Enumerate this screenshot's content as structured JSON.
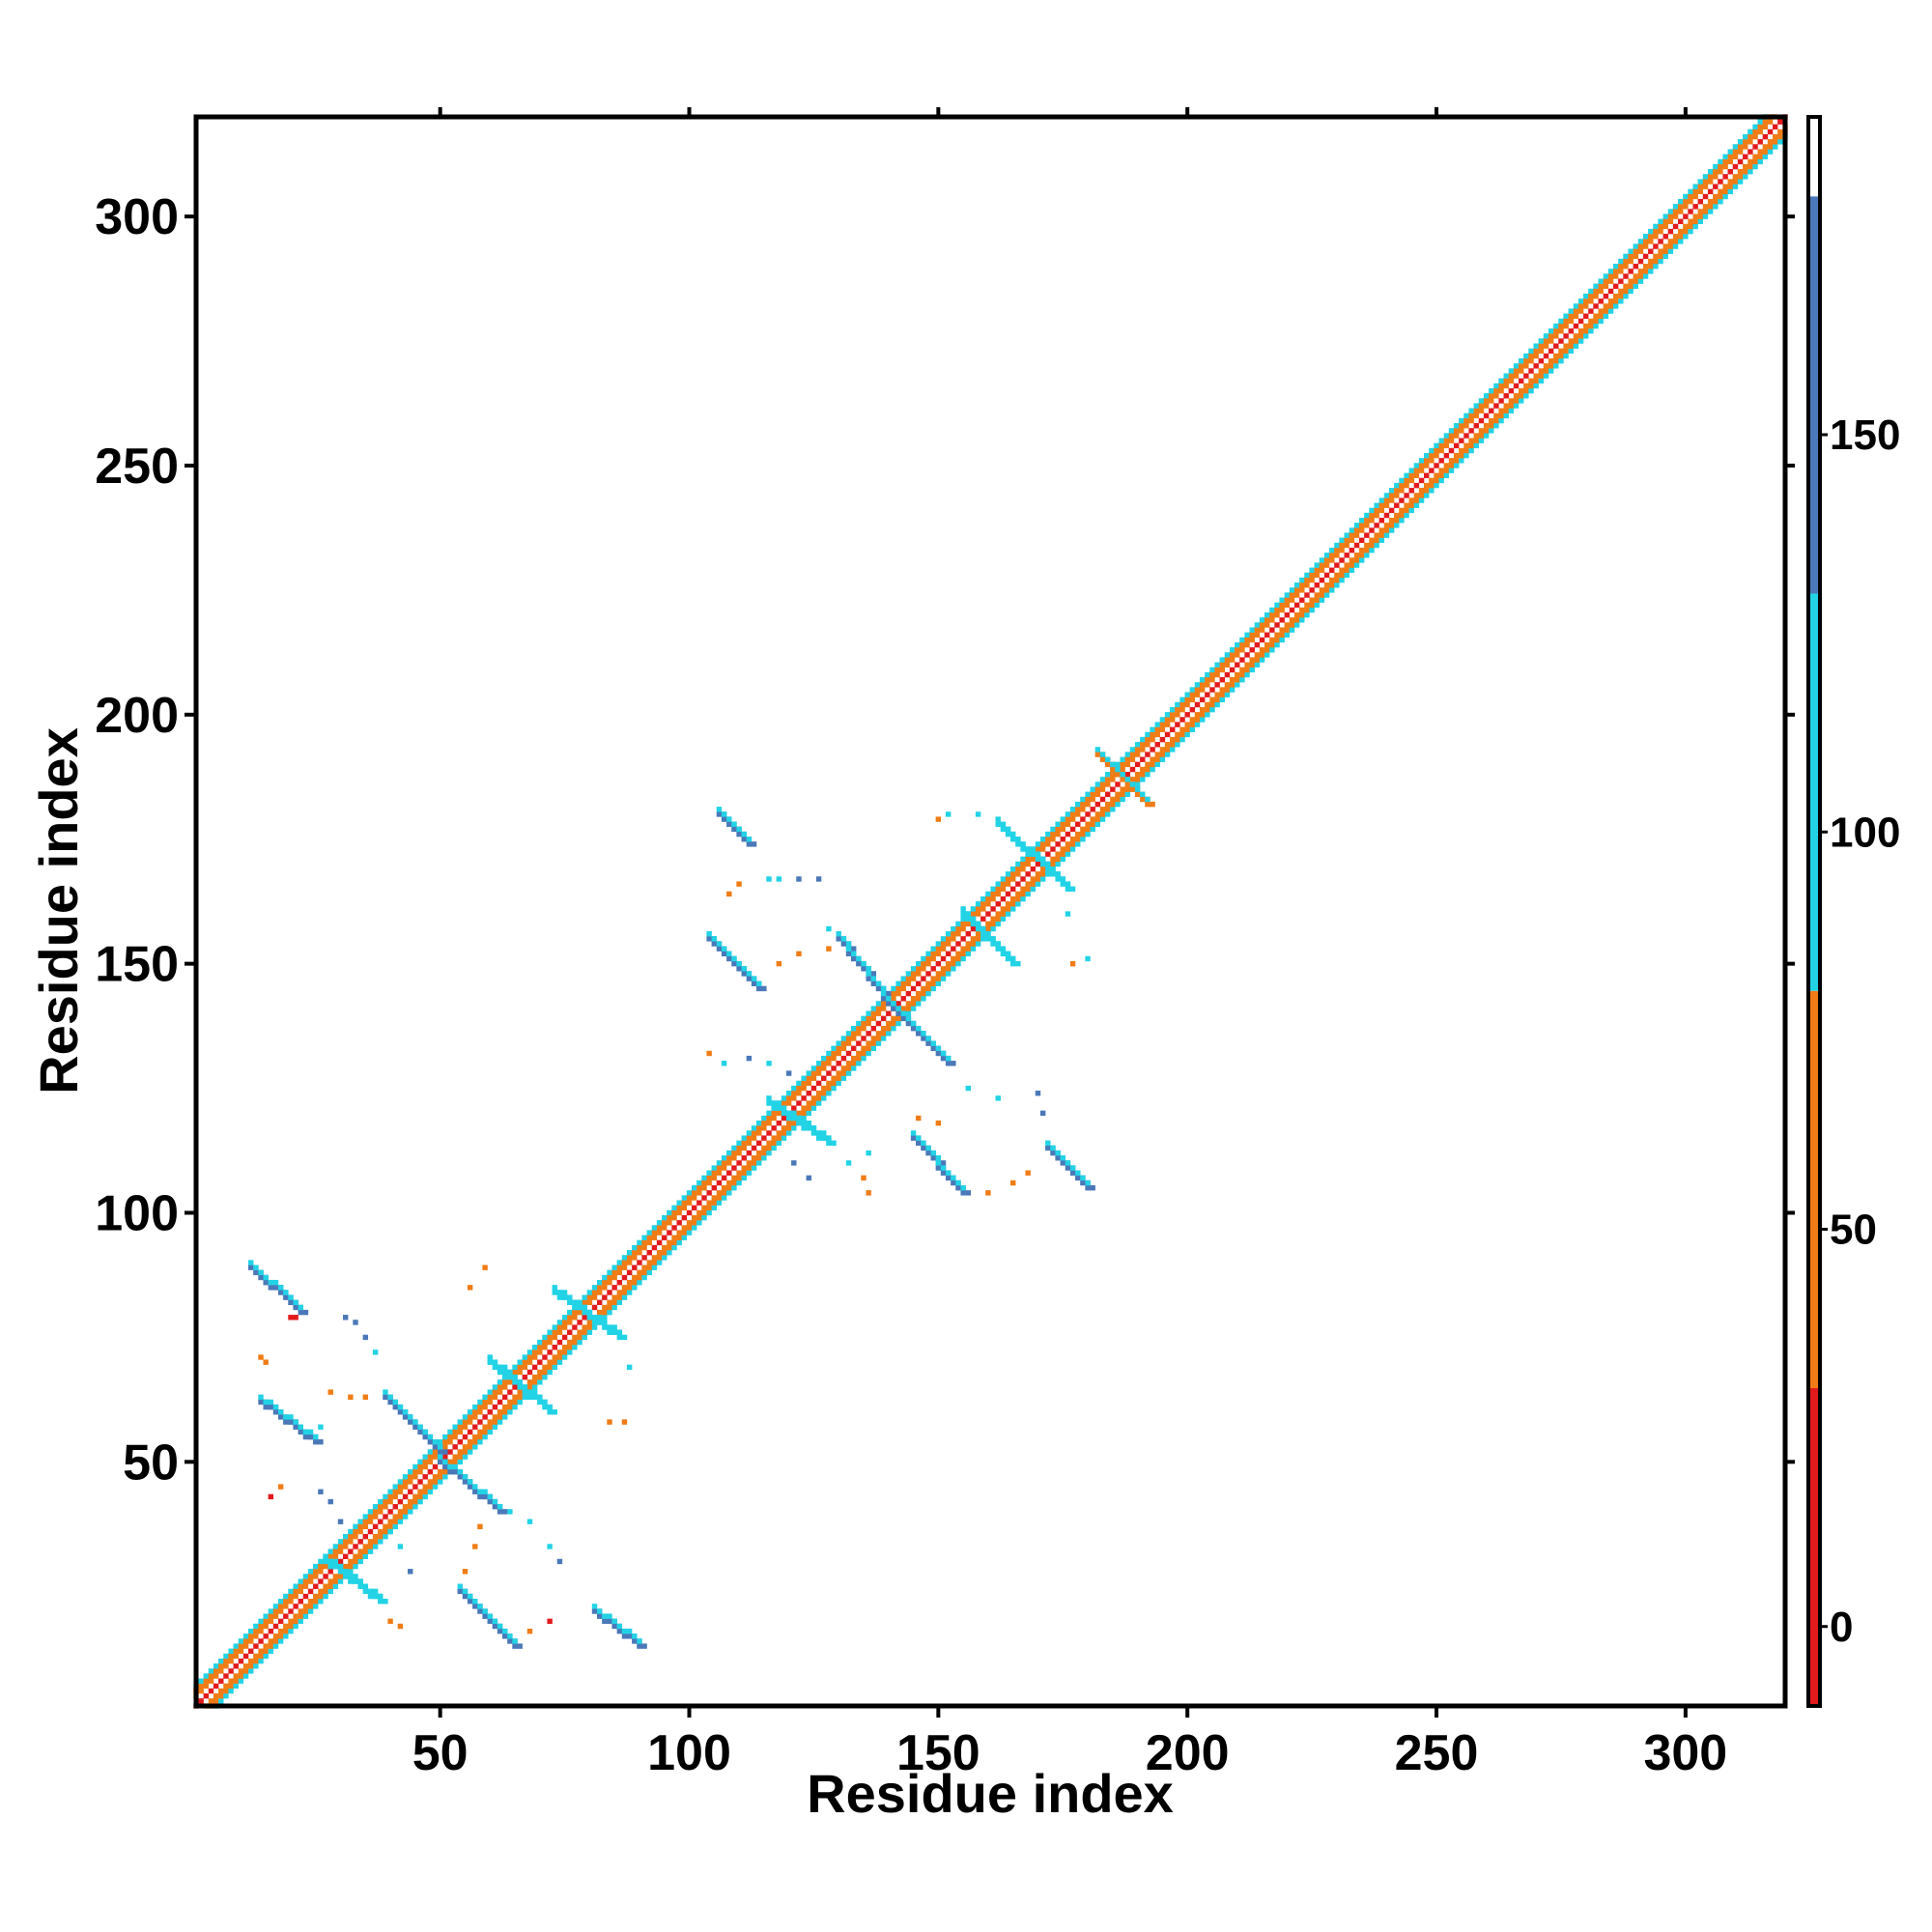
{
  "chart_data": {
    "type": "heatmap",
    "xlabel": "Residue index",
    "ylabel": "Residue index",
    "xlim": [
      1,
      320
    ],
    "ylim": [
      1,
      320
    ],
    "x_ticks": [
      50,
      100,
      150,
      200,
      250,
      300
    ],
    "y_ticks": [
      50,
      100,
      150,
      200,
      250,
      300
    ],
    "colorbar": {
      "range": [
        -10,
        190
      ],
      "ticks": [
        0,
        50,
        100,
        150
      ],
      "bands": [
        {
          "from": -10,
          "to": 30,
          "color": "#e31a1c"
        },
        {
          "from": 30,
          "to": 80,
          "color": "#f07c16"
        },
        {
          "from": 80,
          "to": 130,
          "color": "#22d3e6"
        },
        {
          "from": 130,
          "to": 180,
          "color": "#4a78b8"
        },
        {
          "from": 180,
          "to": 190,
          "color": "#ffffff"
        }
      ]
    },
    "colors": {
      "red": "#e31a1c",
      "orange": "#f07c16",
      "cyan": "#22d3e6",
      "blue": "#4a78b8"
    },
    "diagonal": {
      "from": 1,
      "to": 320,
      "offsets": [
        0,
        2,
        3,
        4
      ]
    },
    "diagonal_colors": {
      "0": "#e31a1c",
      "2": "#f07c16",
      "3": "#f07c16",
      "4": "#22d3e6"
    },
    "bands": [
      {
        "x1": 12,
        "y1": 89,
        "x2": 22,
        "y2": 80,
        "color": "#4a78b8"
      },
      {
        "x1": 14,
        "y1": 62,
        "x2": 25,
        "y2": 54,
        "color": "#4a78b8"
      },
      {
        "x1": 39,
        "y1": 63,
        "x2": 50,
        "y2": 52,
        "color": "#4a78b8"
      },
      {
        "x1": 50,
        "y1": 50,
        "x2": 62,
        "y2": 40,
        "color": "#4a78b8"
      },
      {
        "x1": 54,
        "y1": 24,
        "x2": 65,
        "y2": 13,
        "color": "#4a78b8"
      },
      {
        "x1": 81,
        "y1": 20,
        "x2": 90,
        "y2": 13,
        "color": "#4a78b8"
      },
      {
        "x1": 73,
        "y1": 84,
        "x2": 86,
        "y2": 75,
        "color": "#22d3e6"
      },
      {
        "x1": 106,
        "y1": 180,
        "x2": 112,
        "y2": 174,
        "color": "#4a78b8"
      },
      {
        "x1": 104,
        "y1": 155,
        "x2": 114,
        "y2": 145,
        "color": "#4a78b8"
      },
      {
        "x1": 130,
        "y1": 155,
        "x2": 141,
        "y2": 141,
        "color": "#4a78b8"
      },
      {
        "x1": 141,
        "y1": 141,
        "x2": 152,
        "y2": 130,
        "color": "#4a78b8"
      },
      {
        "x1": 145,
        "y1": 115,
        "x2": 155,
        "y2": 104,
        "color": "#4a78b8"
      },
      {
        "x1": 172,
        "y1": 113,
        "x2": 180,
        "y2": 105,
        "color": "#4a78b8"
      },
      {
        "x1": 162,
        "y1": 178,
        "x2": 176,
        "y2": 165,
        "color": "#22d3e6"
      },
      {
        "x1": 116,
        "y1": 122,
        "x2": 128,
        "y2": 114,
        "color": "#22d3e6"
      },
      {
        "x1": 27,
        "y1": 30,
        "x2": 38,
        "y2": 22,
        "color": "#22d3e6"
      },
      {
        "x1": 60,
        "y1": 70,
        "x2": 72,
        "y2": 60,
        "color": "#22d3e6"
      },
      {
        "x1": 155,
        "y1": 160,
        "x2": 165,
        "y2": 150,
        "color": "#22d3e6"
      },
      {
        "x1": 182,
        "y1": 192,
        "x2": 192,
        "y2": 182,
        "color": "#f07c16"
      }
    ],
    "points": [
      [
        20,
        79,
        "#e31a1c"
      ],
      [
        21,
        79,
        "#e31a1c"
      ],
      [
        14,
        71,
        "#f07c16"
      ],
      [
        15,
        70,
        "#f07c16"
      ],
      [
        28,
        64,
        "#f07c16"
      ],
      [
        32,
        63,
        "#f07c16"
      ],
      [
        35,
        63,
        "#f07c16"
      ],
      [
        26,
        57,
        "#22d3e6"
      ],
      [
        16,
        43,
        "#e31a1c"
      ],
      [
        18,
        45,
        "#f07c16"
      ],
      [
        26,
        44,
        "#4a78b8"
      ],
      [
        28,
        42,
        "#4a78b8"
      ],
      [
        40,
        36,
        "#22d3e6"
      ],
      [
        44,
        28,
        "#4a78b8"
      ],
      [
        42,
        33,
        "#22d3e6"
      ],
      [
        30,
        38,
        "#4a78b8"
      ],
      [
        40,
        18,
        "#f07c16"
      ],
      [
        42,
        17,
        "#f07c16"
      ],
      [
        68,
        16,
        "#f07c16"
      ],
      [
        72,
        18,
        "#e31a1c"
      ],
      [
        58,
        37,
        "#f07c16"
      ],
      [
        57,
        33,
        "#f07c16"
      ],
      [
        55,
        28,
        "#f07c16"
      ],
      [
        64,
        40,
        "#22d3e6"
      ],
      [
        68,
        38,
        "#22d3e6"
      ],
      [
        72,
        33,
        "#22d3e6"
      ],
      [
        74,
        30,
        "#4a78b8"
      ],
      [
        56,
        85,
        "#f07c16"
      ],
      [
        59,
        89,
        "#f07c16"
      ],
      [
        84,
        58,
        "#f07c16"
      ],
      [
        87,
        58,
        "#f07c16"
      ],
      [
        88,
        69,
        "#22d3e6"
      ],
      [
        31,
        79,
        "#4a78b8"
      ],
      [
        33,
        78,
        "#4a78b8"
      ],
      [
        35,
        75,
        "#4a78b8"
      ],
      [
        37,
        72,
        "#22d3e6"
      ],
      [
        108,
        164,
        "#f07c16"
      ],
      [
        110,
        166,
        "#f07c16"
      ],
      [
        118,
        150,
        "#f07c16"
      ],
      [
        122,
        152,
        "#f07c16"
      ],
      [
        128,
        153,
        "#f07c16"
      ],
      [
        104,
        132,
        "#f07c16"
      ],
      [
        107,
        130,
        "#22d3e6"
      ],
      [
        112,
        131,
        "#4a78b8"
      ],
      [
        116,
        130,
        "#22d3e6"
      ],
      [
        120,
        128,
        "#4a78b8"
      ],
      [
        124,
        107,
        "#4a78b8"
      ],
      [
        135,
        107,
        "#f07c16"
      ],
      [
        136,
        104,
        "#f07c16"
      ],
      [
        146,
        119,
        "#f07c16"
      ],
      [
        150,
        118,
        "#f07c16"
      ],
      [
        156,
        125,
        "#22d3e6"
      ],
      [
        162,
        123,
        "#22d3e6"
      ],
      [
        160,
        104,
        "#f07c16"
      ],
      [
        165,
        106,
        "#f07c16"
      ],
      [
        168,
        108,
        "#f07c16"
      ],
      [
        150,
        179,
        "#f07c16"
      ],
      [
        152,
        180,
        "#22d3e6"
      ],
      [
        158,
        180,
        "#22d3e6"
      ],
      [
        177,
        150,
        "#f07c16"
      ],
      [
        180,
        151,
        "#22d3e6"
      ],
      [
        176,
        160,
        "#22d3e6"
      ],
      [
        170,
        124,
        "#4a78b8"
      ],
      [
        171,
        120,
        "#4a78b8"
      ],
      [
        116,
        167,
        "#22d3e6"
      ],
      [
        118,
        167,
        "#22d3e6"
      ],
      [
        122,
        167,
        "#4a78b8"
      ],
      [
        126,
        167,
        "#4a78b8"
      ],
      [
        128,
        157,
        "#22d3e6"
      ],
      [
        132,
        110,
        "#22d3e6"
      ],
      [
        136,
        112,
        "#22d3e6"
      ],
      [
        121,
        110,
        "#4a78b8"
      ]
    ]
  }
}
